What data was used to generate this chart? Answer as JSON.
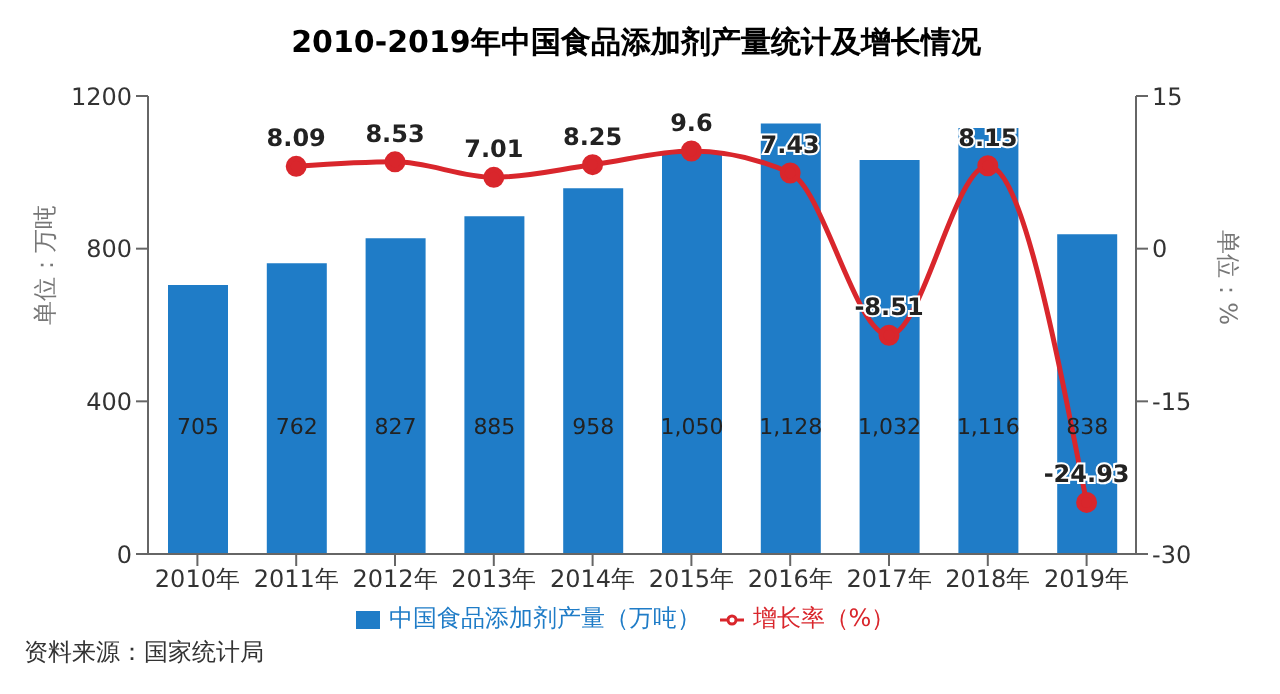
{
  "chart_data": {
    "type": "bar",
    "title": "2010-2019年中国食品添加剂产量统计及增长情况",
    "ylabel": "单位：万吨",
    "y2label": "单位：%",
    "categories": [
      "2010年",
      "2011年",
      "2012年",
      "2013年",
      "2014年",
      "2015年",
      "2016年",
      "2017年",
      "2018年",
      "2019年"
    ],
    "series": [
      {
        "name": "中国食品添加剂产量（万吨）",
        "color": "#1f7cc7",
        "values": [
          705,
          762,
          827,
          885,
          958,
          1050,
          1128,
          1032,
          1116,
          838
        ],
        "value_labels": [
          "705",
          "762",
          "827",
          "885",
          "958",
          "1,050",
          "1,128",
          "1,032",
          "1,116",
          "838"
        ]
      },
      {
        "name": "增长率（%）",
        "type": "line",
        "axis": "y2",
        "color": "#d9262c",
        "values": [
          null,
          8.09,
          8.53,
          7.01,
          8.25,
          9.6,
          7.43,
          -8.51,
          8.15,
          -24.93
        ]
      }
    ],
    "ylim": [
      0,
      1200
    ],
    "yticks": [
      0,
      400,
      800,
      1200
    ],
    "y2lim": [
      -30,
      15
    ],
    "y2ticks": [
      -30,
      -15,
      0,
      15
    ],
    "data_labels": true,
    "legend": "bottom",
    "grid": false,
    "marker": "circle",
    "annotations": [
      "资料来源：国家统计局"
    ]
  }
}
